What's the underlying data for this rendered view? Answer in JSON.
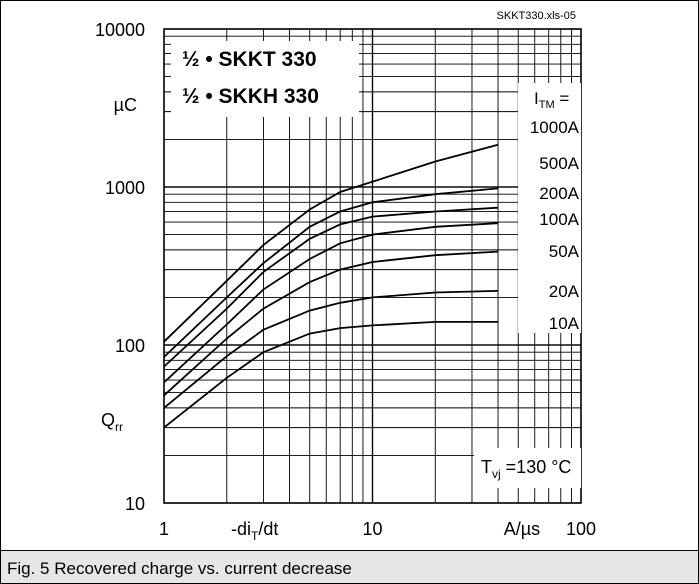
{
  "chart_data": {
    "type": "line",
    "source_tag": "SKKT330.xls-05",
    "titles": [
      "½ • SKKT 330",
      "½ • SKKH 330"
    ],
    "xlabel": "-diT/dt",
    "xunit": "A/µs",
    "ylabel": "Qrr",
    "yunit": "µC",
    "x_scale": "log",
    "y_scale": "log",
    "xlim": [
      1,
      100
    ],
    "ylim": [
      10,
      10000
    ],
    "x_ticks": [
      "1",
      "10",
      "100"
    ],
    "y_ticks": [
      "10",
      "100",
      "1000",
      "10000"
    ],
    "grid": true,
    "legend_header": "ITM =",
    "condition": "Tvj =130 °C",
    "series": [
      {
        "name": "1000A",
        "x": [
          1,
          2,
          3,
          5,
          7,
          10,
          20,
          40
        ],
        "y": [
          105,
          255,
          430,
          720,
          930,
          1080,
          1450,
          1850
        ]
      },
      {
        "name": "500A",
        "x": [
          1,
          2,
          3,
          5,
          7,
          10,
          20,
          40
        ],
        "y": [
          84,
          200,
          330,
          560,
          700,
          800,
          900,
          980
        ]
      },
      {
        "name": "200A",
        "x": [
          1,
          2,
          3,
          5,
          7,
          10,
          20,
          40
        ],
        "y": [
          73,
          170,
          290,
          470,
          580,
          650,
          700,
          740
        ]
      },
      {
        "name": "100A",
        "x": [
          1,
          2,
          3,
          5,
          7,
          10,
          20,
          40
        ],
        "y": [
          58,
          135,
          225,
          350,
          440,
          500,
          560,
          590
        ]
      },
      {
        "name": "50A",
        "x": [
          1,
          2,
          3,
          5,
          7,
          10,
          20,
          40
        ],
        "y": [
          48,
          110,
          170,
          250,
          300,
          335,
          370,
          390
        ]
      },
      {
        "name": "20A",
        "x": [
          1,
          2,
          3,
          5,
          7,
          10,
          20,
          40
        ],
        "y": [
          40,
          85,
          125,
          165,
          185,
          200,
          215,
          220
        ]
      },
      {
        "name": "10A",
        "x": [
          1,
          2,
          3,
          5,
          7,
          10,
          20,
          40
        ],
        "y": [
          30,
          62,
          90,
          118,
          128,
          133,
          140,
          140
        ]
      }
    ]
  },
  "caption": "Fig. 5 Recovered charge vs. current decrease"
}
